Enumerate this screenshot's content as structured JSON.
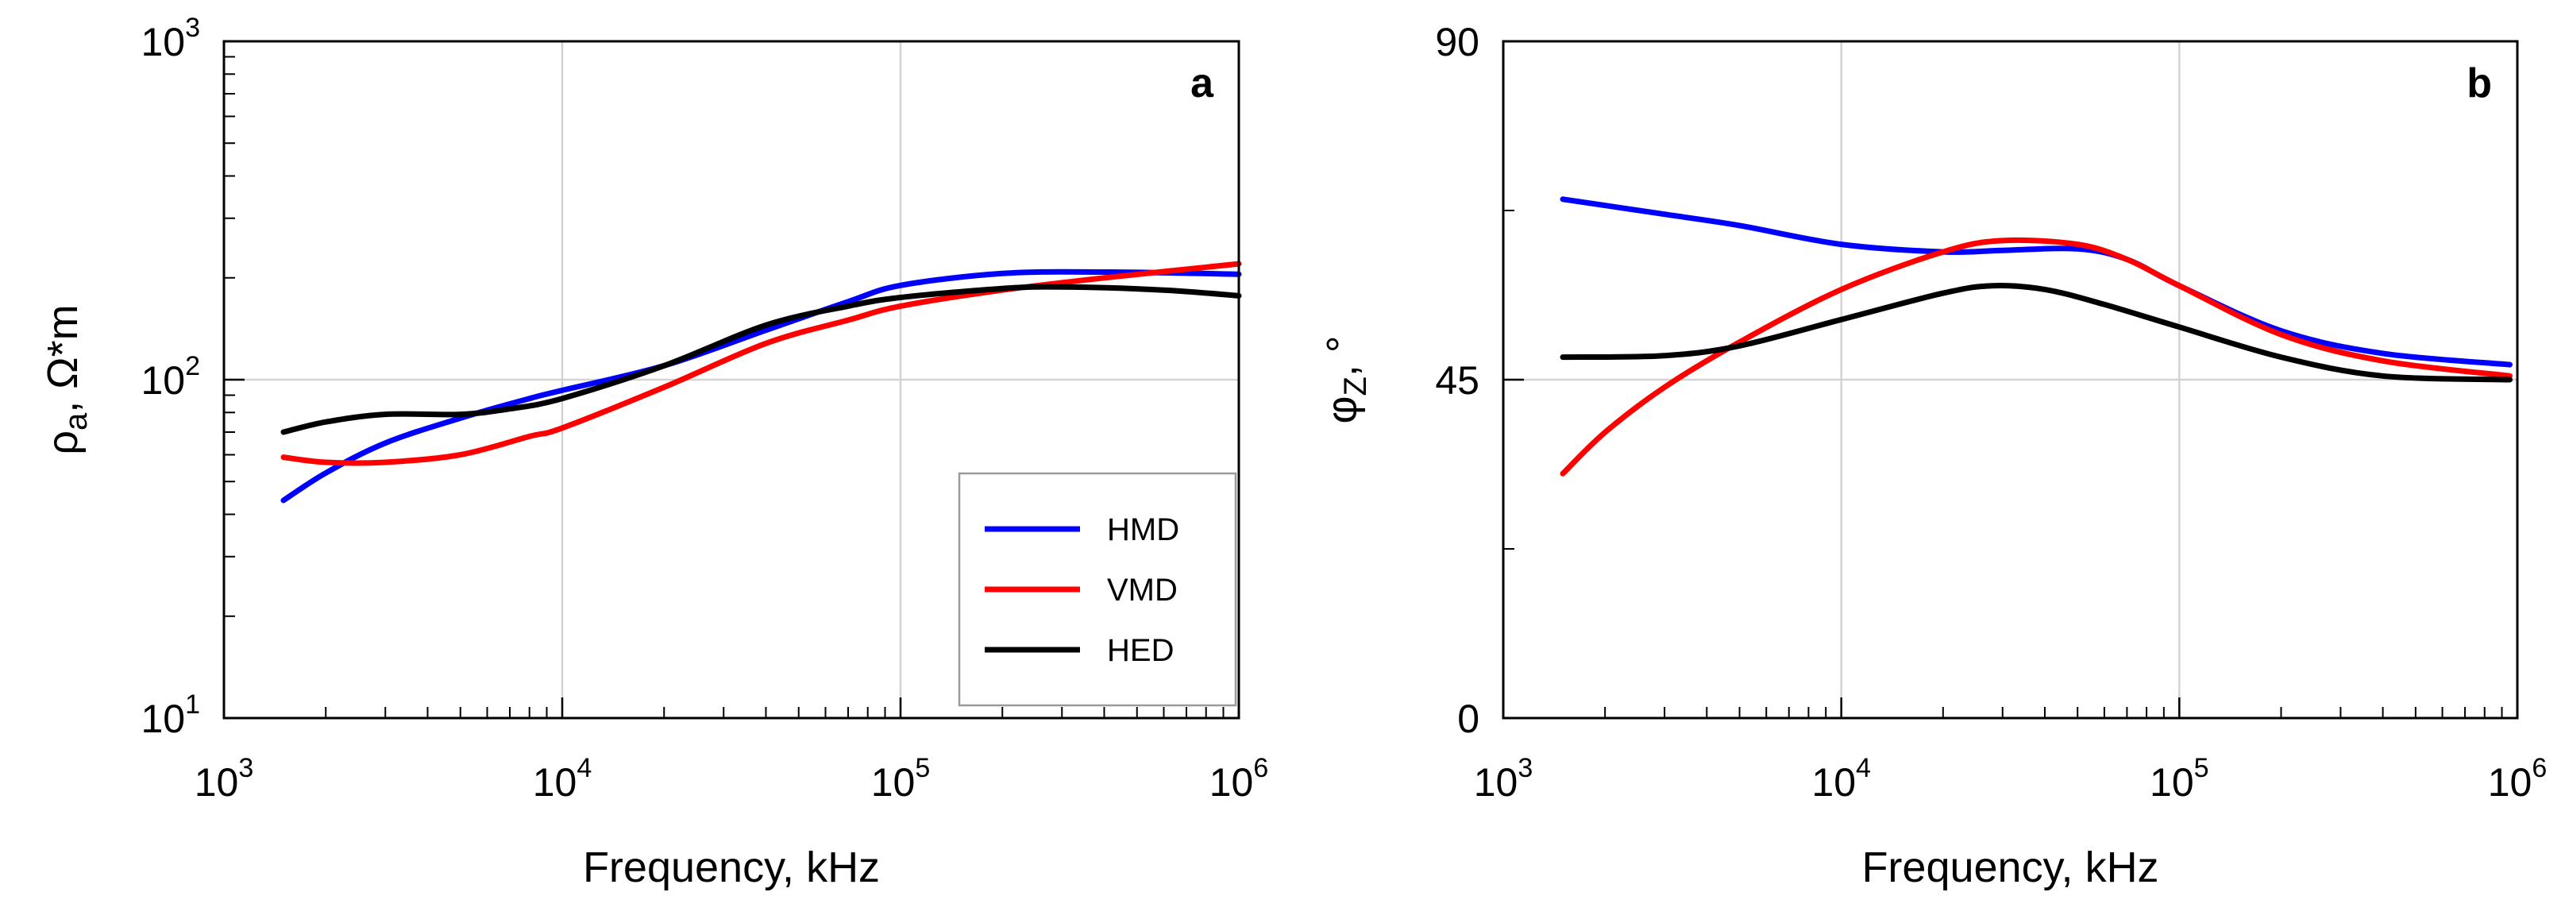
{
  "chart_data": [
    {
      "type": "line",
      "panel_label": "a",
      "xscale": "log",
      "yscale": "log",
      "xlim": [
        1000,
        1000000
      ],
      "ylim": [
        10,
        1000
      ],
      "xlabel": "Frequency, kHz",
      "ylabel": {
        "base": "ρ",
        "sub": "a",
        "rest": ", Ω*m"
      },
      "grid": true,
      "xticks": [
        {
          "value": 1000,
          "exp": "3"
        },
        {
          "value": 10000,
          "exp": "4"
        },
        {
          "value": 100000,
          "exp": "5"
        },
        {
          "value": 1000000,
          "exp": "6"
        }
      ],
      "yticks": [
        {
          "value": 10,
          "exp": "1"
        },
        {
          "value": 100,
          "exp": "2"
        },
        {
          "value": 1000,
          "exp": "3"
        }
      ],
      "tick_base": "10",
      "legend": {
        "position": "lower-right",
        "entries": [
          "HMD",
          "VMD",
          "HED"
        ]
      },
      "series": [
        {
          "name": "HMD",
          "color": "#0000ff",
          "x": [
            1500,
            2000,
            3000,
            5000,
            8000,
            10000,
            20000,
            40000,
            70000,
            100000,
            200000,
            400000,
            1000000
          ],
          "y": [
            44,
            53,
            65,
            77,
            88,
            93,
            110,
            140,
            170,
            190,
            206,
            208,
            205
          ]
        },
        {
          "name": "VMD",
          "color": "#ff0000",
          "x": [
            1500,
            2000,
            3000,
            5000,
            8000,
            10000,
            20000,
            40000,
            70000,
            100000,
            200000,
            400000,
            1000000
          ],
          "y": [
            59,
            57,
            57,
            60,
            68,
            72,
            95,
            128,
            150,
            165,
            184,
            200,
            220
          ]
        },
        {
          "name": "HED",
          "color": "#000000",
          "x": [
            1500,
            2000,
            3000,
            5000,
            7000,
            10000,
            20000,
            40000,
            70000,
            100000,
            200000,
            300000,
            600000,
            1000000
          ],
          "y": [
            70,
            75,
            79,
            79,
            82,
            88,
            110,
            145,
            165,
            175,
            186,
            188,
            184,
            177
          ]
        }
      ]
    },
    {
      "type": "line",
      "panel_label": "b",
      "xscale": "log",
      "yscale": "linear",
      "xlim": [
        1000,
        1000000
      ],
      "ylim": [
        0,
        90
      ],
      "xlabel": "Frequency, kHz",
      "ylabel": {
        "base": "φ",
        "sub": "Z",
        "rest": ", °"
      },
      "grid": true,
      "xticks": [
        {
          "value": 1000,
          "exp": "3"
        },
        {
          "value": 10000,
          "exp": "4"
        },
        {
          "value": 100000,
          "exp": "5"
        },
        {
          "value": 1000000,
          "exp": "6"
        }
      ],
      "yticks": [
        {
          "value": 0,
          "label": "0"
        },
        {
          "value": 45,
          "label": "45"
        },
        {
          "value": 90,
          "label": "90"
        }
      ],
      "tick_base": "10",
      "series": [
        {
          "name": "HMD",
          "color": "#0000ff",
          "x": [
            1500,
            3000,
            5000,
            10000,
            20000,
            30000,
            50000,
            70000,
            100000,
            200000,
            400000,
            950000
          ],
          "y": [
            69,
            67,
            65.5,
            63,
            62,
            62.2,
            62.4,
            61,
            57.5,
            51.5,
            48.5,
            47
          ]
        },
        {
          "name": "VMD",
          "color": "#ff0000",
          "x": [
            1500,
            2000,
            3000,
            5000,
            10000,
            20000,
            30000,
            50000,
            70000,
            100000,
            200000,
            400000,
            950000
          ],
          "y": [
            32.5,
            38,
            44,
            50,
            57,
            62,
            63.5,
            63,
            61,
            57.5,
            51,
            47.5,
            45.5
          ]
        },
        {
          "name": "HED",
          "color": "#000000",
          "x": [
            1500,
            3000,
            5000,
            10000,
            20000,
            28000,
            40000,
            60000,
            100000,
            200000,
            400000,
            950000
          ],
          "y": [
            48,
            48.2,
            49.5,
            53,
            56.5,
            57.5,
            57,
            55,
            52,
            48,
            45.5,
            45
          ]
        }
      ]
    }
  ]
}
